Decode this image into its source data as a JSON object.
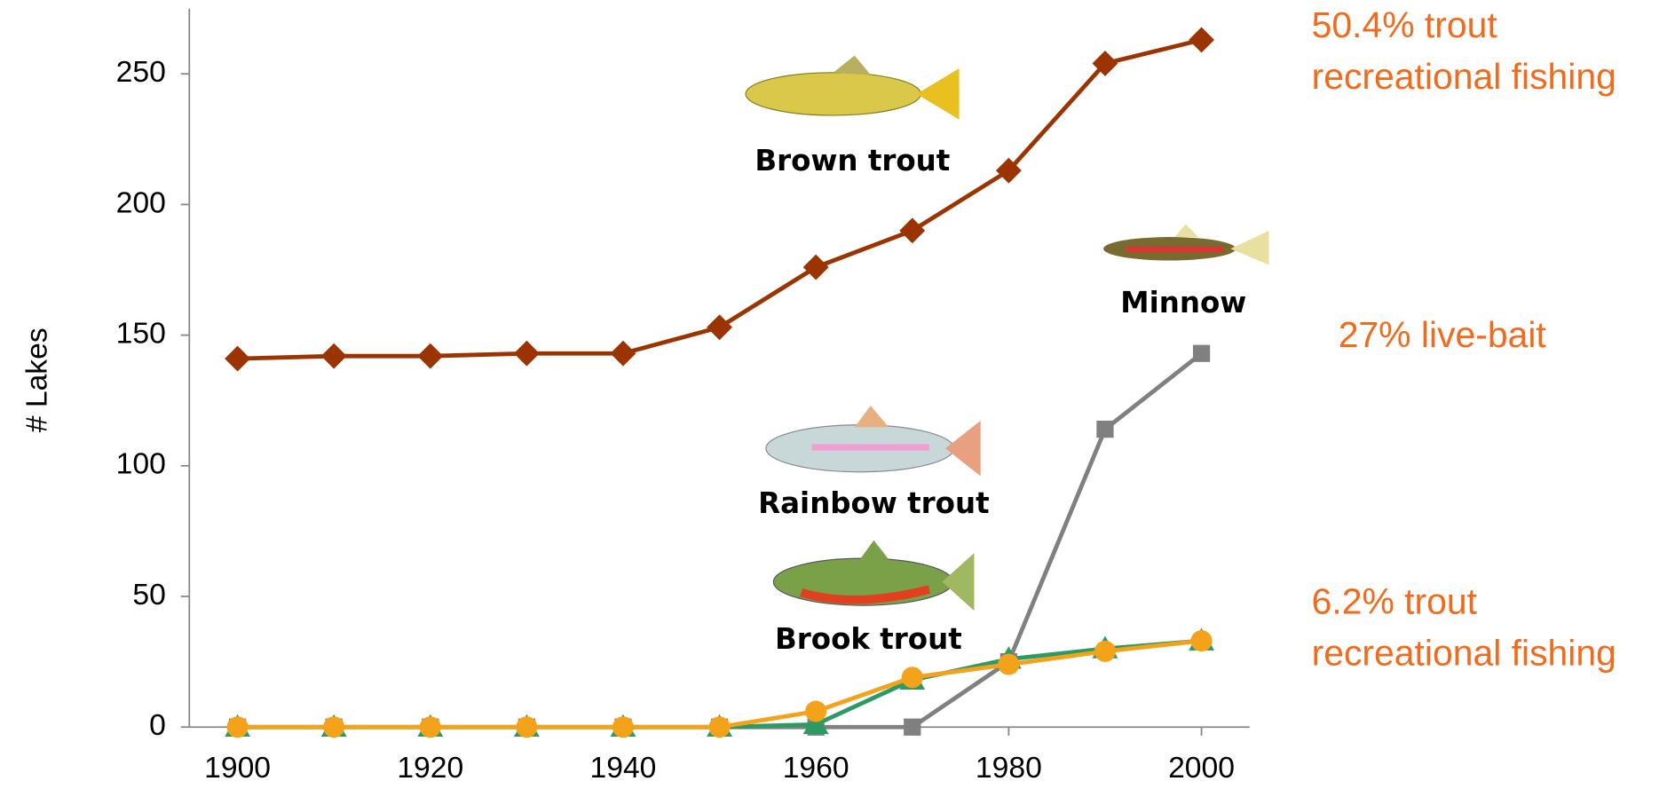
{
  "chart_data": {
    "type": "line",
    "y_label": "# Lakes",
    "x": [
      1900,
      1910,
      1920,
      1930,
      1940,
      1950,
      1960,
      1970,
      1980,
      1990,
      2000
    ],
    "xlim": [
      1895,
      2005
    ],
    "xticks": [
      1900,
      1920,
      1940,
      1960,
      1980,
      2000
    ],
    "ylim": [
      0,
      275
    ],
    "yticks": [
      0,
      50,
      100,
      150,
      200,
      250
    ],
    "series": [
      {
        "name": "Minnow",
        "color": "#808080",
        "marker": "square",
        "values": [
          0,
          0,
          0,
          0,
          0,
          0,
          0,
          0,
          25,
          114,
          143
        ]
      },
      {
        "name": "Brook trout",
        "color": "#2e9a63",
        "marker": "triangle",
        "values": [
          0,
          0,
          0,
          0,
          0,
          0,
          1,
          18,
          26,
          30,
          33
        ]
      },
      {
        "name": "Rainbow trout",
        "color": "#f5a21b",
        "marker": "circle",
        "values": [
          0,
          0,
          0,
          0,
          0,
          0,
          6,
          19,
          24,
          29,
          33
        ]
      },
      {
        "name": "Brown trout",
        "color": "#9b3400",
        "marker": "diamond",
        "values": [
          141,
          142,
          142,
          143,
          143,
          153,
          176,
          190,
          213,
          254,
          263
        ]
      }
    ],
    "annotations": [
      {
        "lines": [
          "50.4% trout",
          "recreational fishing"
        ]
      },
      {
        "lines": [
          "27% live-bait"
        ]
      },
      {
        "lines": [
          "6.2% trout",
          "recreational fishing"
        ]
      }
    ]
  }
}
